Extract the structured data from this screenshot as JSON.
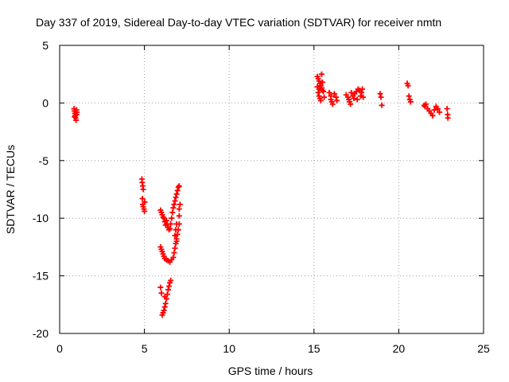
{
  "chart_data": {
    "type": "scatter",
    "title": "Day 337 of 2019, Sidereal Day-to-day VTEC variation (SDTVAR) for receiver nmtn",
    "xlabel": "GPS time / hours",
    "ylabel": "SDTVAR / TECUs",
    "xlim": [
      0,
      25
    ],
    "ylim": [
      -20,
      5
    ],
    "xticks": [
      "0",
      "5",
      "10",
      "15",
      "20",
      "25"
    ],
    "yticks": [
      "5",
      "0",
      "-5",
      "-10",
      "-15",
      "-20"
    ],
    "grid": true,
    "legend": "none",
    "marker": "+",
    "color": "#ff0000",
    "series": [
      {
        "points": [
          [
            0.85,
            -0.5
          ],
          [
            0.87,
            -0.7
          ],
          [
            0.9,
            -0.9
          ],
          [
            0.92,
            -1.1
          ],
          [
            0.95,
            -1.3
          ],
          [
            0.97,
            -1.5
          ],
          [
            1.0,
            -0.6
          ],
          [
            1.0,
            -1.0
          ],
          [
            1.02,
            -0.8
          ],
          [
            0.88,
            -1.2
          ],
          [
            4.85,
            -6.6
          ],
          [
            4.87,
            -6.9
          ],
          [
            4.9,
            -7.2
          ],
          [
            4.93,
            -7.5
          ],
          [
            4.88,
            -8.3
          ],
          [
            4.9,
            -8.8
          ],
          [
            4.93,
            -9.0
          ],
          [
            4.97,
            -9.2
          ],
          [
            5.0,
            -9.4
          ],
          [
            5.02,
            -8.6
          ],
          [
            5.95,
            -9.3
          ],
          [
            6.0,
            -9.5
          ],
          [
            6.05,
            -9.7
          ],
          [
            6.1,
            -9.9
          ],
          [
            6.15,
            -10.0
          ],
          [
            6.2,
            -10.3
          ],
          [
            6.25,
            -10.6
          ],
          [
            6.3,
            -10.2
          ],
          [
            6.35,
            -10.5
          ],
          [
            6.4,
            -10.8
          ],
          [
            6.45,
            -11.0
          ],
          [
            6.5,
            -10.9
          ],
          [
            6.55,
            -10.5
          ],
          [
            6.6,
            -10.0
          ],
          [
            6.65,
            -9.5
          ],
          [
            6.7,
            -9.1
          ],
          [
            6.75,
            -8.8
          ],
          [
            6.8,
            -8.5
          ],
          [
            6.85,
            -8.2
          ],
          [
            6.9,
            -7.9
          ],
          [
            6.95,
            -7.6
          ],
          [
            7.0,
            -7.3
          ],
          [
            7.05,
            -7.2
          ],
          [
            5.95,
            -12.5
          ],
          [
            6.0,
            -12.7
          ],
          [
            6.05,
            -12.9
          ],
          [
            6.1,
            -13.1
          ],
          [
            6.15,
            -13.3
          ],
          [
            6.2,
            -13.5
          ],
          [
            6.3,
            -13.6
          ],
          [
            6.4,
            -13.7
          ],
          [
            6.5,
            -13.8
          ],
          [
            6.6,
            -13.6
          ],
          [
            6.7,
            -13.4
          ],
          [
            6.75,
            -13.0
          ],
          [
            6.8,
            -12.6
          ],
          [
            6.85,
            -12.2
          ],
          [
            6.9,
            -11.8
          ],
          [
            6.95,
            -11.4
          ],
          [
            7.0,
            -11.0
          ],
          [
            7.05,
            -10.5
          ],
          [
            7.05,
            -9.8
          ],
          [
            7.05,
            -9.2
          ],
          [
            7.1,
            -8.8
          ],
          [
            6.8,
            -11.5
          ],
          [
            6.85,
            -11.0
          ],
          [
            6.9,
            -12.0
          ],
          [
            6.9,
            -10.5
          ],
          [
            5.95,
            -16.0
          ],
          [
            6.0,
            -16.5
          ],
          [
            6.05,
            -18.4
          ],
          [
            6.1,
            -18.2
          ],
          [
            6.15,
            -18.0
          ],
          [
            6.2,
            -17.7
          ],
          [
            6.25,
            -17.4
          ],
          [
            6.3,
            -17.0
          ],
          [
            6.35,
            -16.6
          ],
          [
            6.4,
            -16.2
          ],
          [
            6.45,
            -15.9
          ],
          [
            6.5,
            -15.6
          ],
          [
            6.55,
            -15.4
          ],
          [
            6.2,
            -16.8
          ],
          [
            15.2,
            2.3
          ],
          [
            15.25,
            2.1
          ],
          [
            15.3,
            1.9
          ],
          [
            15.35,
            1.7
          ],
          [
            15.4,
            1.5
          ],
          [
            15.45,
            1.3
          ],
          [
            15.5,
            1.1
          ],
          [
            15.25,
            0.9
          ],
          [
            15.3,
            0.6
          ],
          [
            15.35,
            0.4
          ],
          [
            15.4,
            0.2
          ],
          [
            15.45,
            2.5
          ],
          [
            15.5,
            1.8
          ],
          [
            15.55,
            1.0
          ],
          [
            15.6,
            0.5
          ],
          [
            15.2,
            1.4
          ],
          [
            15.3,
            1.2
          ],
          [
            15.9,
            0.9
          ],
          [
            16.0,
            0.6
          ],
          [
            16.0,
            0.3
          ],
          [
            16.05,
            0.1
          ],
          [
            16.1,
            -0.1
          ],
          [
            16.2,
            0.8
          ],
          [
            16.3,
            0.5
          ],
          [
            16.35,
            0.2
          ],
          [
            16.9,
            0.7
          ],
          [
            17.0,
            0.5
          ],
          [
            17.05,
            0.3
          ],
          [
            17.1,
            0.1
          ],
          [
            17.15,
            -0.1
          ],
          [
            17.2,
            0.9
          ],
          [
            17.3,
            0.6
          ],
          [
            17.35,
            0.4
          ],
          [
            17.4,
            0.8
          ],
          [
            17.5,
            1.0
          ],
          [
            17.55,
            0.3
          ],
          [
            17.6,
            1.2
          ],
          [
            17.7,
            1.1
          ],
          [
            17.75,
            0.6
          ],
          [
            17.8,
            0.9
          ],
          [
            17.85,
            1.2
          ],
          [
            17.9,
            0.5
          ],
          [
            18.9,
            0.8
          ],
          [
            18.95,
            0.5
          ],
          [
            19.0,
            -0.2
          ],
          [
            20.5,
            1.7
          ],
          [
            20.55,
            1.5
          ],
          [
            20.6,
            0.6
          ],
          [
            20.65,
            0.3
          ],
          [
            20.7,
            0.1
          ],
          [
            21.5,
            -0.2
          ],
          [
            21.55,
            -0.3
          ],
          [
            21.6,
            -0.1
          ],
          [
            21.7,
            -0.5
          ],
          [
            21.8,
            -0.7
          ],
          [
            21.9,
            -0.9
          ],
          [
            22.0,
            -1.1
          ],
          [
            22.1,
            -0.6
          ],
          [
            22.2,
            -0.3
          ],
          [
            22.3,
            -0.5
          ],
          [
            22.4,
            -0.8
          ],
          [
            22.85,
            -0.5
          ],
          [
            22.88,
            -1.0
          ],
          [
            22.9,
            -1.3
          ]
        ]
      }
    ]
  }
}
